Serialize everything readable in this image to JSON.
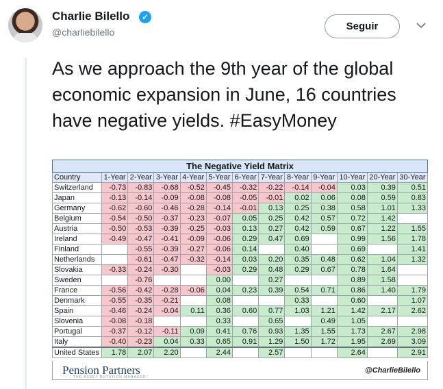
{
  "user": {
    "name": "Charlie Bilello",
    "handle": "@charliebilello",
    "follow_label": "Seguir"
  },
  "tweet": {
    "text": "As we approach the 9th year of the global economic expansion in June, 16 countries have negative yields. #EasyMoney"
  },
  "matrix": {
    "title": "The Negative Yield Matrix",
    "headers": [
      "Country",
      "1-Year",
      "2-Year",
      "3-Year",
      "4-Year",
      "5-Year",
      "6-Year",
      "7-Year",
      "8-Year",
      "9-Year",
      "10-Year",
      "20-Year",
      "30-Year"
    ],
    "rows": [
      [
        "Switzerland",
        "-0.73",
        "-0.83",
        "-0.68",
        "-0.52",
        "-0.45",
        "-0.32",
        "-0.22",
        "-0.14",
        "-0.04",
        "0.03",
        "0.39",
        "0.51"
      ],
      [
        "Japan",
        "-0.13",
        "-0.14",
        "-0.09",
        "-0.08",
        "-0.08",
        "-0.05",
        "-0.01",
        "0.02",
        "0.06",
        "0.08",
        "0.59",
        "0.83"
      ],
      [
        "Germany",
        "-0.62",
        "-0.60",
        "-0.46",
        "-0.28",
        "-0.14",
        "-0.01",
        "0.13",
        "0.25",
        "0.38",
        "0.58",
        "1.01",
        "1.33"
      ],
      [
        "Belgium",
        "-0.54",
        "-0.50",
        "-0.37",
        "-0.23",
        "-0.07",
        "0.05",
        "0.25",
        "0.42",
        "0.57",
        "0.72",
        "1.42",
        ""
      ],
      [
        "Austria",
        "-0.50",
        "-0.53",
        "-0.39",
        "-0.25",
        "-0.03",
        "0.13",
        "0.27",
        "0.42",
        "0.59",
        "0.67",
        "1.22",
        "1.55"
      ],
      [
        "Ireland",
        "-0.49",
        "-0.47",
        "-0.41",
        "-0.09",
        "-0.06",
        "0.29",
        "0.47",
        "0.69",
        "",
        "0.99",
        "1.56",
        "1.78"
      ],
      [
        "Finland",
        "",
        "-0.55",
        "-0.39",
        "-0.27",
        "-0.06",
        "0.14",
        "",
        "0.40",
        "",
        "0.69",
        "",
        "1.41"
      ],
      [
        "Netherlands",
        "",
        "-0.61",
        "-0.47",
        "-0.32",
        "-0.14",
        "0.03",
        "0.20",
        "0.35",
        "0.48",
        "0.62",
        "1.04",
        "1.32"
      ],
      [
        "Slovakia",
        "-0.33",
        "-0.24",
        "-0.30",
        "",
        "-0.03",
        "0.29",
        "0.48",
        "0.29",
        "0.67",
        "0.78",
        "1.64",
        ""
      ],
      [
        "Sweden",
        "",
        "-0.76",
        "",
        "",
        "0.00",
        "",
        "0.27",
        "",
        "",
        "0.89",
        "1.58",
        ""
      ],
      [
        "France",
        "-0.56",
        "-0.42",
        "-0.28",
        "-0.06",
        "0.04",
        "0.23",
        "0.39",
        "0.54",
        "0.71",
        "0.86",
        "1.40",
        "1.79"
      ],
      [
        "Denmark",
        "-0.55",
        "-0.35",
        "-0.21",
        "",
        "0.08",
        "",
        "",
        "0.33",
        "",
        "0.60",
        "",
        "1.07"
      ],
      [
        "Spain",
        "-0.46",
        "-0.24",
        "-0.04",
        "0.11",
        "0.36",
        "0.60",
        "0.77",
        "1.03",
        "1.21",
        "1.42",
        "2.17",
        "2.62"
      ],
      [
        "Slovenia",
        "-0.08",
        "-0.18",
        "",
        "",
        "0.33",
        "",
        "0.65",
        "",
        "0.49",
        "1.05",
        "",
        ""
      ],
      [
        "Portugal",
        "-0.37",
        "-0.12",
        "-0.11",
        "0.09",
        "0.41",
        "0.76",
        "0.93",
        "1.35",
        "1.55",
        "1.73",
        "2.67",
        "2.98"
      ],
      [
        "Italy",
        "-0.40",
        "-0.23",
        "0.04",
        "0.33",
        "0.65",
        "0.91",
        "1.29",
        "1.50",
        "1.72",
        "1.95",
        "2.69",
        "3.09"
      ],
      [
        "United States",
        "1.78",
        "2.07",
        "2.20",
        "",
        "2.44",
        "",
        "2.57",
        "",
        "",
        "2.64",
        "",
        "2.91"
      ]
    ],
    "row_shading": [
      [
        "neg",
        "neg",
        "neg",
        "neg",
        "neg",
        "neg",
        "neg",
        "neg",
        "neg",
        "pos",
        "pos",
        "pos"
      ],
      [
        "neg",
        "neg",
        "neg",
        "neg",
        "neg",
        "neg",
        "neg",
        "pos",
        "pos",
        "pos",
        "pos",
        "pos"
      ],
      [
        "neg",
        "neg",
        "neg",
        "neg",
        "neg",
        "neg",
        "pos",
        "pos",
        "pos",
        "pos",
        "pos",
        "pos"
      ],
      [
        "neg",
        "neg",
        "neg",
        "neg",
        "neg",
        "pos",
        "pos",
        "pos",
        "pos",
        "pos",
        "pos",
        "pos"
      ],
      [
        "neg",
        "neg",
        "neg",
        "neg",
        "neg",
        "pos",
        "pos",
        "pos",
        "pos",
        "pos",
        "pos",
        "pos"
      ],
      [
        "neg",
        "neg",
        "neg",
        "neg",
        "neg",
        "pos",
        "pos",
        "pos",
        "pos",
        "pos",
        "pos",
        "pos"
      ],
      [
        "neg",
        "neg",
        "neg",
        "neg",
        "neg",
        "pos",
        "pos",
        "pos",
        "pos",
        "pos",
        "pos",
        "pos"
      ],
      [
        "neg",
        "neg",
        "neg",
        "neg",
        "neg",
        "pos",
        "pos",
        "pos",
        "pos",
        "pos",
        "pos",
        "pos"
      ],
      [
        "neg",
        "neg",
        "neg",
        "neg",
        "neg",
        "pos",
        "pos",
        "pos",
        "pos",
        "pos",
        "pos",
        "pos"
      ],
      [
        "neg",
        "neg",
        "neg",
        "neg",
        "pos",
        "pos",
        "pos",
        "pos",
        "pos",
        "pos",
        "pos",
        "pos"
      ],
      [
        "neg",
        "neg",
        "neg",
        "neg",
        "pos",
        "pos",
        "pos",
        "pos",
        "pos",
        "pos",
        "pos",
        "pos"
      ],
      [
        "neg",
        "neg",
        "neg",
        "neg",
        "pos",
        "pos",
        "pos",
        "pos",
        "pos",
        "pos",
        "pos",
        "pos"
      ],
      [
        "neg",
        "neg",
        "neg",
        "pos",
        "pos",
        "pos",
        "pos",
        "pos",
        "pos",
        "pos",
        "pos",
        "pos"
      ],
      [
        "neg",
        "neg",
        "neg",
        "pos",
        "pos",
        "pos",
        "pos",
        "pos",
        "pos",
        "pos",
        "pos",
        "pos"
      ],
      [
        "neg",
        "neg",
        "neg",
        "pos",
        "pos",
        "pos",
        "pos",
        "pos",
        "pos",
        "pos",
        "pos",
        "pos"
      ],
      [
        "neg",
        "neg",
        "pos",
        "pos",
        "pos",
        "pos",
        "pos",
        "pos",
        "pos",
        "pos",
        "pos",
        "pos"
      ],
      [
        "pos",
        "pos",
        "pos",
        "pos",
        "pos",
        "pos",
        "pos",
        "pos",
        "pos",
        "pos",
        "pos",
        "pos"
      ]
    ],
    "logo_text": "Pension Partners",
    "logo_tagline": "THE ASSET ROTATION MANAGER",
    "credit": "@CharlieBilello"
  },
  "colors": {
    "negative_cell": "#f8c7cc",
    "positive_cell": "#c8eccb",
    "header_bg": "#dfe9f7",
    "verified": "#1da1f2"
  }
}
